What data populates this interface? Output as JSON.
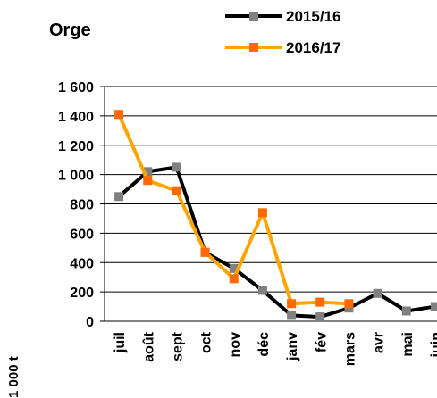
{
  "chart_data": {
    "type": "line",
    "title": "Orge",
    "y_label": "1 000 t",
    "categories": [
      "juil",
      "août",
      "sept",
      "oct",
      "nov",
      "déc",
      "janv",
      "fév",
      "mars",
      "avr",
      "mai",
      "juin"
    ],
    "series": [
      {
        "name": "2015/16",
        "color": "#000000",
        "marker_color": "#808080",
        "values": [
          850,
          1020,
          1050,
          470,
          360,
          210,
          40,
          30,
          90,
          190,
          70,
          100
        ]
      },
      {
        "name": "2016/17",
        "color": "#ffa500",
        "marker_color": "#ff6a00",
        "values": [
          1410,
          960,
          890,
          470,
          290,
          740,
          120,
          130,
          120,
          null,
          null,
          null
        ]
      }
    ],
    "ylim": [
      0,
      1600
    ],
    "yticks": [
      0,
      200,
      400,
      600,
      800,
      {
        "value": 1000,
        "label": "1 000"
      },
      {
        "value": 1200,
        "label": "1 200"
      },
      {
        "value": 1400,
        "label": "1 400"
      },
      {
        "value": 1600,
        "label": "1 600"
      }
    ],
    "grid": true,
    "legend": "top"
  }
}
